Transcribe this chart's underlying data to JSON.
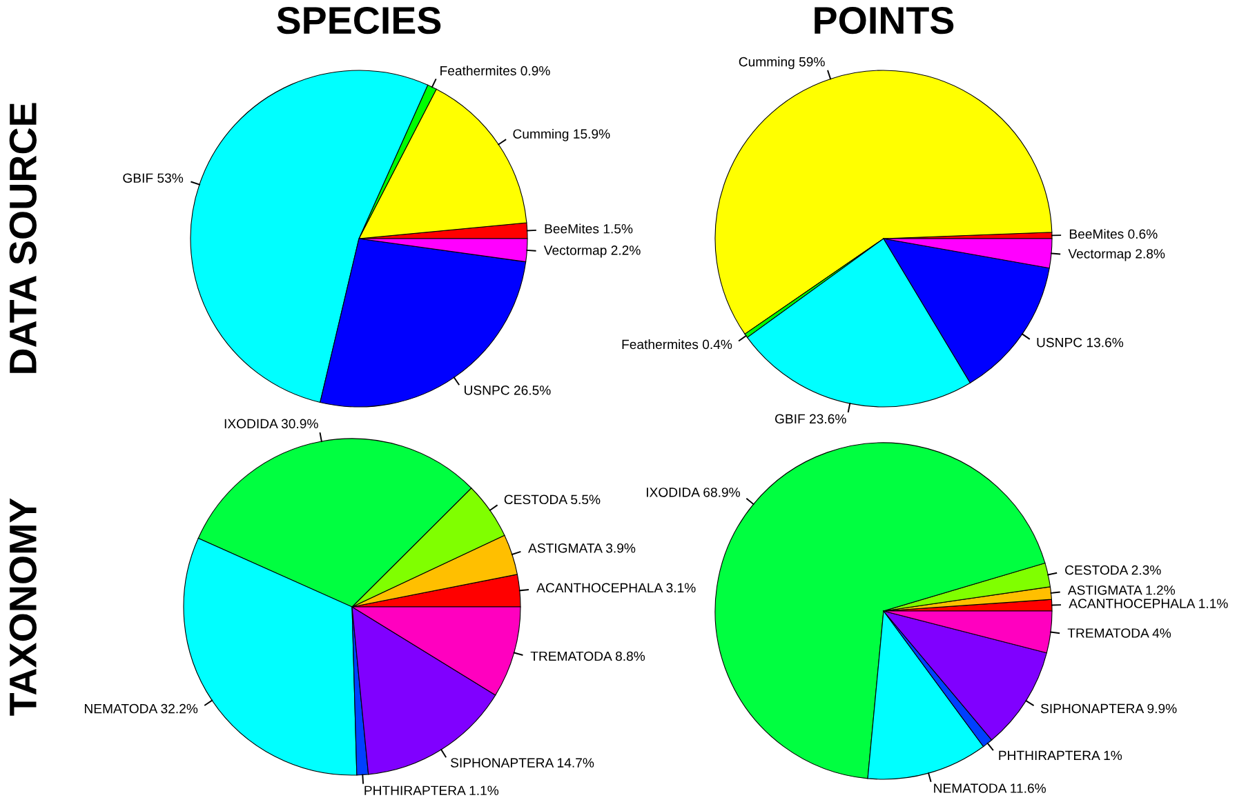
{
  "chart_data": [
    {
      "type": "pie",
      "title": "SPECIES",
      "ylabel": "DATA SOURCE",
      "categories": [
        "BeeMites",
        "Cumming",
        "Feathermites",
        "GBIF",
        "USNPC",
        "Vectormap"
      ],
      "values": [
        1.5,
        15.9,
        0.9,
        53,
        26.5,
        2.2
      ],
      "colors": [
        "#ff0000",
        "#ffff00",
        "#00ff00",
        "#00ffff",
        "#0000ff",
        "#ff00ff"
      ],
      "value_labels": [
        "1.5%",
        "15.9%",
        "0.9%",
        "53%",
        "26.5%",
        "2.2%"
      ]
    },
    {
      "type": "pie",
      "title": "POINTS",
      "categories": [
        "BeeMites",
        "Cumming",
        "Feathermites",
        "GBIF",
        "USNPC",
        "Vectormap"
      ],
      "values": [
        0.6,
        59,
        0.4,
        23.6,
        13.6,
        2.8
      ],
      "colors": [
        "#ff0000",
        "#ffff00",
        "#00ff00",
        "#00ffff",
        "#0000ff",
        "#ff00ff"
      ],
      "value_labels": [
        "0.6%",
        "59%",
        "0.4%",
        "23.6%",
        "13.6%",
        "2.8%"
      ]
    },
    {
      "type": "pie",
      "ylabel": "TAXONOMY",
      "categories": [
        "ACANTHOCEPHALA",
        "ASTIGMATA",
        "CESTODA",
        "IXODIDA",
        "NEMATODA",
        "PHTHIRAPTERA",
        "SIPHONAPTERA",
        "TREMATODA"
      ],
      "values": [
        3.1,
        3.9,
        5.5,
        30.9,
        32.2,
        1.1,
        14.7,
        8.8
      ],
      "colors": [
        "#ff0000",
        "#ffbf00",
        "#80ff00",
        "#00ff40",
        "#00ffff",
        "#0040ff",
        "#8000ff",
        "#ff00bf"
      ],
      "value_labels": [
        "3.1%",
        "3.9%",
        "5.5%",
        "30.9%",
        "32.2%",
        "1.1%",
        "14.7%",
        "8.8%"
      ]
    },
    {
      "type": "pie",
      "categories": [
        "ACANTHOCEPHALA",
        "ASTIGMATA",
        "CESTODA",
        "IXODIDA",
        "NEMATODA",
        "PHTHIRAPTERA",
        "SIPHONAPTERA",
        "TREMATODA"
      ],
      "values": [
        1.1,
        1.2,
        2.3,
        68.9,
        11.6,
        1,
        9.9,
        4
      ],
      "colors": [
        "#ff0000",
        "#ffbf00",
        "#80ff00",
        "#00ff40",
        "#00ffff",
        "#0040ff",
        "#8000ff",
        "#ff00bf"
      ],
      "value_labels": [
        "1.1%",
        "1.2%",
        "2.3%",
        "68.9%",
        "11.6%",
        "1%",
        "9.9%",
        "4%"
      ]
    }
  ]
}
